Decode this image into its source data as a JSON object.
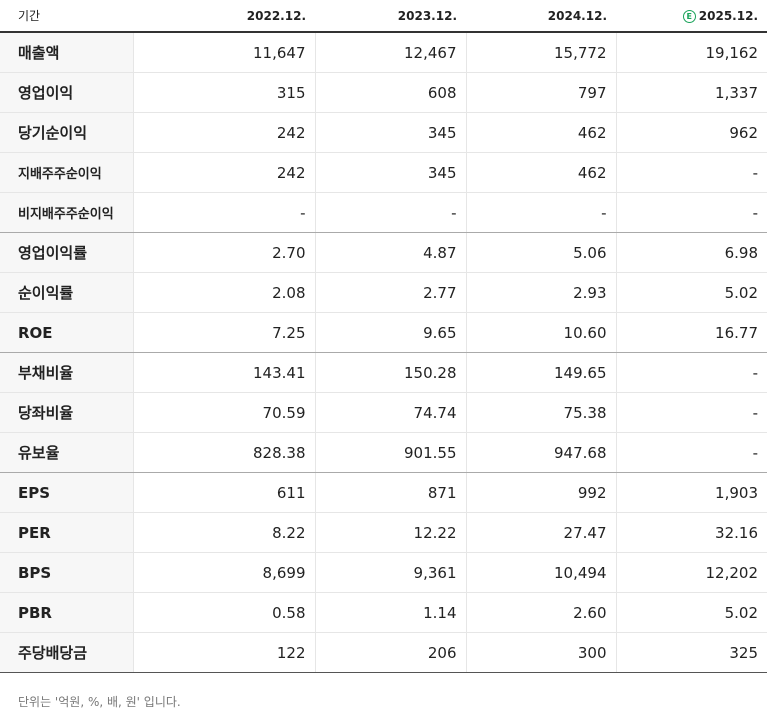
{
  "header": {
    "period_label": "기간",
    "estimate_mark": "E",
    "columns": [
      "2022.12.",
      "2023.12.",
      "2024.12.",
      "2025.12."
    ]
  },
  "rows": [
    {
      "label": "매출액",
      "values": [
        "11,647",
        "12,467",
        "15,772",
        "19,162"
      ]
    },
    {
      "label": "영업이익",
      "values": [
        "315",
        "608",
        "797",
        "1,337"
      ]
    },
    {
      "label": "당기순이익",
      "values": [
        "242",
        "345",
        "462",
        "962"
      ]
    },
    {
      "label": "지배주주순이익",
      "values": [
        "242",
        "345",
        "462",
        "-"
      ]
    },
    {
      "label": "비지배주주순이익",
      "values": [
        "-",
        "-",
        "-",
        "-"
      ]
    },
    {
      "label": "영업이익률",
      "values": [
        "2.70",
        "4.87",
        "5.06",
        "6.98"
      ]
    },
    {
      "label": "순이익률",
      "values": [
        "2.08",
        "2.77",
        "2.93",
        "5.02"
      ]
    },
    {
      "label": "ROE",
      "values": [
        "7.25",
        "9.65",
        "10.60",
        "16.77"
      ]
    },
    {
      "label": "부채비율",
      "values": [
        "143.41",
        "150.28",
        "149.65",
        "-"
      ]
    },
    {
      "label": "당좌비율",
      "values": [
        "70.59",
        "74.74",
        "75.38",
        "-"
      ]
    },
    {
      "label": "유보율",
      "values": [
        "828.38",
        "901.55",
        "947.68",
        "-"
      ]
    },
    {
      "label": "EPS",
      "values": [
        "611",
        "871",
        "992",
        "1,903"
      ]
    },
    {
      "label": "PER",
      "values": [
        "8.22",
        "12.22",
        "27.47",
        "32.16"
      ]
    },
    {
      "label": "BPS",
      "values": [
        "8,699",
        "9,361",
        "10,494",
        "12,202"
      ]
    },
    {
      "label": "PBR",
      "values": [
        "0.58",
        "1.14",
        "2.60",
        "5.02"
      ]
    },
    {
      "label": "주당배당금",
      "values": [
        "122",
        "206",
        "300",
        "325"
      ]
    }
  ],
  "footnote": "단위는 '억원, %, 배, 원' 입니다."
}
